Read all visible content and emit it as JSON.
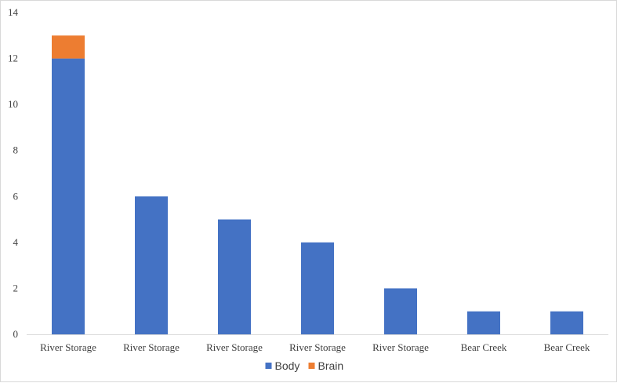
{
  "chart_data": {
    "type": "bar",
    "stacked": true,
    "title": "",
    "xlabel": "",
    "ylabel": "",
    "categories": [
      "River Storage",
      "River Storage",
      "River Storage",
      "River Storage",
      "River Storage",
      "Bear Creek",
      "Bear Creek"
    ],
    "series": [
      {
        "name": "Body",
        "color": "#4472c4",
        "values": [
          12,
          6,
          5,
          4,
          2,
          1,
          1
        ]
      },
      {
        "name": "Brain",
        "color": "#ed7d31",
        "values": [
          1,
          0,
          0,
          0,
          0,
          0,
          0
        ]
      }
    ],
    "ylim": [
      0,
      14
    ],
    "yticks": [
      0,
      2,
      4,
      6,
      8,
      10,
      12,
      14
    ],
    "grid": false,
    "legend_position": "bottom"
  }
}
